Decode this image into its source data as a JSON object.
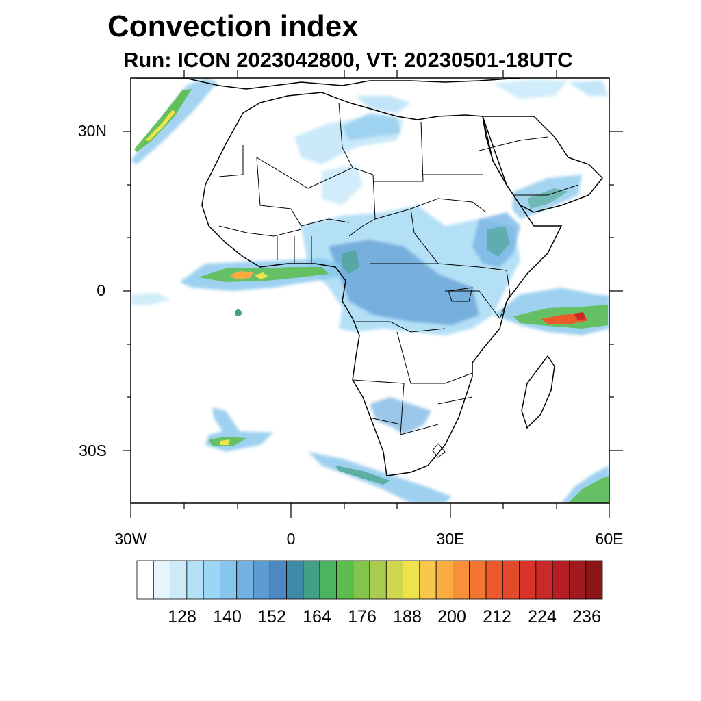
{
  "title": "Convection index",
  "subtitle": "Run: ICON 2023042800,  VT: 20230501-18UTC",
  "map": {
    "extent": {
      "lon_min": -30,
      "lon_max": 60,
      "lat_min": -40,
      "lat_max": 40
    },
    "lat_labels": [
      {
        "lat": 30,
        "text": "30N"
      },
      {
        "lat": 0,
        "text": "0"
      },
      {
        "lat": -30,
        "text": "30S"
      }
    ],
    "lon_labels": [
      {
        "lon": -30,
        "text": "30W"
      },
      {
        "lon": 0,
        "text": "0"
      },
      {
        "lon": 30,
        "text": "30E"
      },
      {
        "lon": 60,
        "text": "60E"
      }
    ]
  },
  "colorbar": {
    "labels": [
      "128",
      "140",
      "152",
      "164",
      "176",
      "188",
      "200",
      "212",
      "224",
      "236"
    ],
    "colors": [
      "#ffffff",
      "#e6f4fc",
      "#cdeaf9",
      "#b4e1f7",
      "#9bd6f4",
      "#86c6ec",
      "#72b1e2",
      "#5d9bd3",
      "#4c88c3",
      "#3f8aa6",
      "#44a085",
      "#4cb360",
      "#5bbd4c",
      "#82c44c",
      "#a9cc4f",
      "#cfd64f",
      "#efe24c",
      "#f8c84a",
      "#f8ac42",
      "#f6913a",
      "#f27533",
      "#ec5a2c",
      "#e24a29",
      "#d83429",
      "#c92a29",
      "#b51f24",
      "#a01a20",
      "#8a1518"
    ]
  }
}
